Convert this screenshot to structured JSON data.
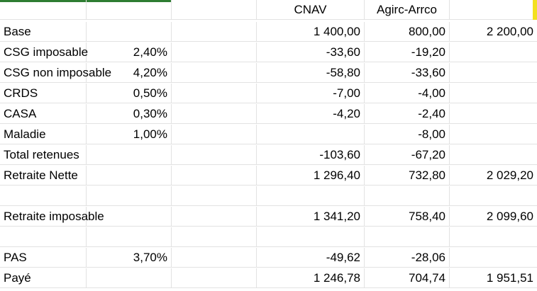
{
  "sheet": {
    "header": {
      "col3": "CNAV",
      "col4": "Agirc-Arrco"
    },
    "rows": [
      {
        "label": "Base",
        "rate": "",
        "cnav": "1 400,00",
        "agirc": "800,00",
        "total": "2 200,00"
      },
      {
        "label": "CSG imposable",
        "rate": "2,40%",
        "cnav": "-33,60",
        "agirc": "-19,20",
        "total": ""
      },
      {
        "label": "CSG non imposable",
        "rate": "4,20%",
        "cnav": "-58,80",
        "agirc": "-33,60",
        "total": ""
      },
      {
        "label": "CRDS",
        "rate": "0,50%",
        "cnav": "-7,00",
        "agirc": "-4,00",
        "total": ""
      },
      {
        "label": "CASA",
        "rate": "0,30%",
        "cnav": "-4,20",
        "agirc": "-2,40",
        "total": ""
      },
      {
        "label": "Maladie",
        "rate": "1,00%",
        "cnav": "",
        "agirc": "-8,00",
        "total": ""
      },
      {
        "label": "Total retenues",
        "rate": "",
        "cnav": "-103,60",
        "agirc": "-67,20",
        "total": ""
      },
      {
        "label": "Retraite Nette",
        "rate": "",
        "cnav": "1 296,40",
        "agirc": "732,80",
        "total": "2 029,20"
      },
      {
        "label": "",
        "rate": "",
        "cnav": "",
        "agirc": "",
        "total": ""
      },
      {
        "label": "Retraite imposable",
        "rate": "",
        "cnav": "1 341,20",
        "agirc": "758,40",
        "total": "2 099,60"
      },
      {
        "label": "",
        "rate": "",
        "cnav": "",
        "agirc": "",
        "total": ""
      },
      {
        "label": "PAS",
        "rate": "3,70%",
        "cnav": "-49,62",
        "agirc": "-28,06",
        "total": ""
      },
      {
        "label": "Payé",
        "rate": "",
        "cnav": "1 246,78",
        "agirc": "704,74",
        "total": "1 951,51"
      }
    ]
  },
  "colors": {
    "gridline": "#e2e2e2",
    "selection_accent": "#2e7d32",
    "highlight": "#f3e020"
  }
}
